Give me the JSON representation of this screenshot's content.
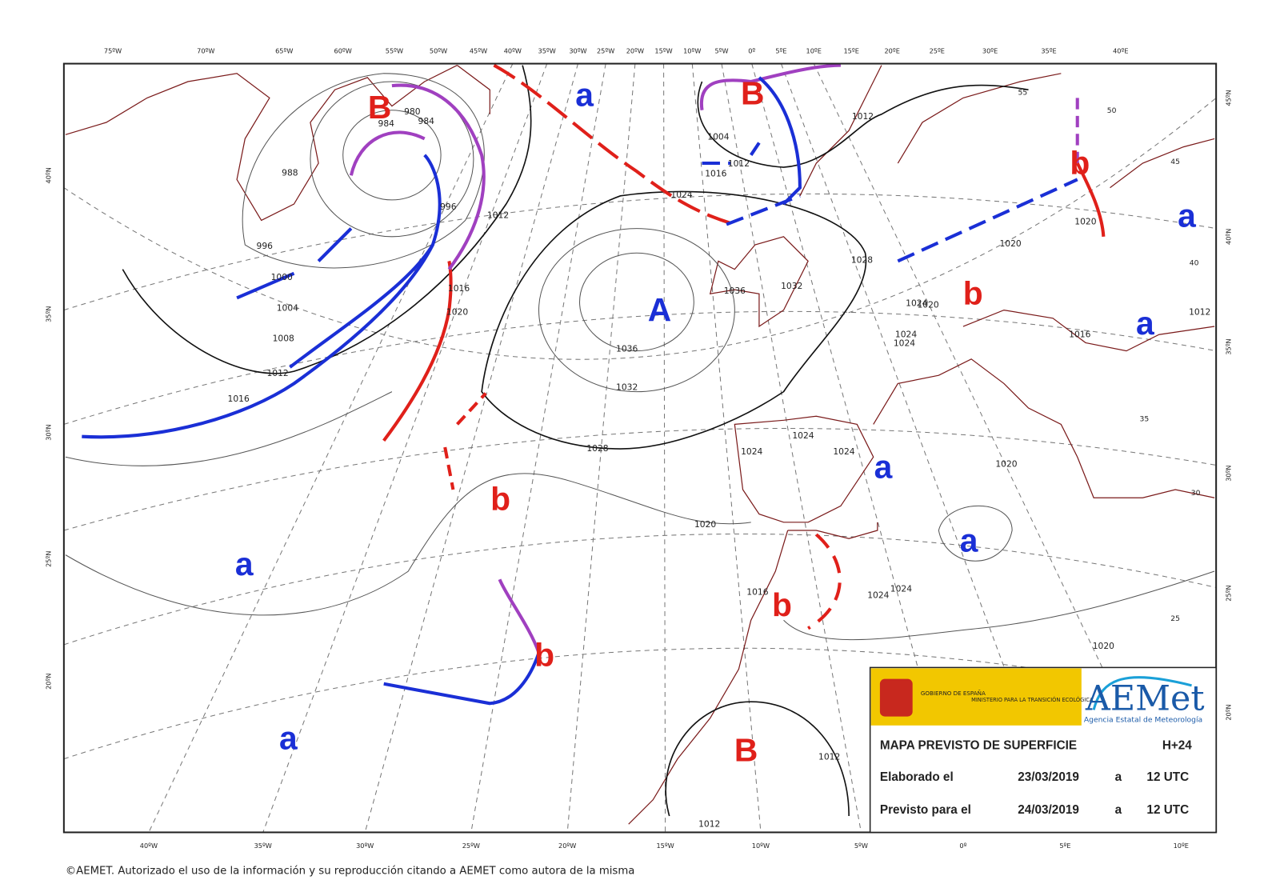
{
  "top_longitudes": [
    "75ºW",
    "70ºW",
    "65ºW",
    "60ºW",
    "55ºW",
    "50ºW",
    "45ºW",
    "40ºW",
    "35ºW",
    "30ºW",
    "25ºW",
    "20ºW",
    "15ºW",
    "10ºW",
    "5ºW",
    "0º",
    "5ºE",
    "10ºE",
    "15ºE",
    "20ºE",
    "25ºE",
    "30ºE",
    "35ºE",
    "40ºE"
  ],
  "bottom_longitudes": [
    "40ºW",
    "35ºW",
    "30ºW",
    "25ºW",
    "20ºW",
    "15ºW",
    "10ºW",
    "5ºW",
    "0º",
    "5ºE",
    "10ºE"
  ],
  "left_latitudes": [
    "40ºN",
    "35ºN",
    "30ºN",
    "25ºN",
    "20ºN"
  ],
  "right_latitudes": [
    "45ºN",
    "40ºN",
    "35ºN",
    "30ºN",
    "25ºN",
    "20ºN"
  ],
  "inner_grid_numbers": [
    "55",
    "50",
    "45",
    "40",
    "35",
    "30",
    "25"
  ],
  "pressure_centers": [
    {
      "label": "B",
      "color": "#e0201a"
    },
    {
      "label": "B",
      "color": "#e0201a"
    },
    {
      "label": "A",
      "color": "#1a2fd6"
    },
    {
      "label": "B",
      "color": "#e0201a"
    },
    {
      "label": "a",
      "color": "#1a2fd6"
    },
    {
      "label": "b",
      "color": "#e0201a"
    },
    {
      "label": "a",
      "color": "#1a2fd6"
    },
    {
      "label": "a",
      "color": "#1a2fd6"
    },
    {
      "label": "a",
      "color": "#1a2fd6"
    },
    {
      "label": "a",
      "color": "#1a2fd6"
    },
    {
      "label": "b",
      "color": "#e0201a"
    },
    {
      "label": "a",
      "color": "#1a2fd6"
    },
    {
      "label": "b",
      "color": "#e0201a"
    },
    {
      "label": "b",
      "color": "#e0201a"
    },
    {
      "label": "a",
      "color": "#1a2fd6"
    },
    {
      "label": "b",
      "color": "#e0201a"
    }
  ],
  "isobar_labels": [
    "980",
    "984",
    "984",
    "988",
    "996",
    "996",
    "1000",
    "1004",
    "1008",
    "1012",
    "1016",
    "1020",
    "1016",
    "1012",
    "1028",
    "1036",
    "1032",
    "1024",
    "1036",
    "1032",
    "1028",
    "1004",
    "1012",
    "1016",
    "1012",
    "1024",
    "1020",
    "1020",
    "1020",
    "1024",
    "1024",
    "1024",
    "1024",
    "1024",
    "1020",
    "1016",
    "1024",
    "1024",
    "1016",
    "1020",
    "1012",
    "1012",
    "1012",
    "1020"
  ],
  "legend": {
    "government": "GOBIERNO DE ESPAÑA",
    "ministry": "MINISTERIO PARA LA TRANSICIÓN ECOLÓGICA",
    "agency_logo": "AEMet",
    "agency_name": "Agencia Estatal de Meteorología",
    "title": "MAPA PREVISTO DE SUPERFICIE",
    "lead_time": "H+24",
    "rows": [
      [
        "Elaborado el",
        "23/03/2019",
        "a",
        "12 UTC"
      ],
      [
        "Previsto para el",
        "24/03/2019",
        "a",
        "12 UTC"
      ]
    ]
  },
  "copyright": "©AEMET. Autorizado el uso de la información y su reproducción citando a AEMET como autora de la misma"
}
